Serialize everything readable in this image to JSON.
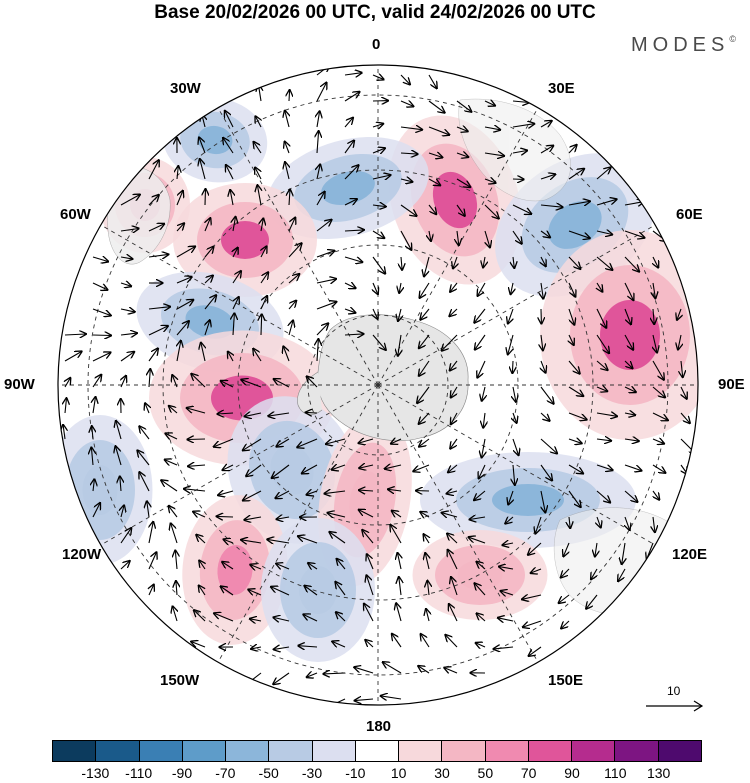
{
  "title": "Base 20/02/2026 00 UTC, valid 24/02/2026 00 UTC",
  "logo": {
    "text": "MODES",
    "mark": "©"
  },
  "map": {
    "projection": "south-polar-stereographic",
    "longitude_labels": [
      "0",
      "30E",
      "60E",
      "90E",
      "120E",
      "150E",
      "180",
      "150W",
      "120W",
      "90W",
      "60W",
      "30W"
    ],
    "anomaly_centers": [
      {
        "sign": "positive",
        "value": 75
      },
      {
        "sign": "negative",
        "value": -55
      },
      {
        "sign": "negative",
        "value": -60
      },
      {
        "sign": "positive",
        "value": 70
      },
      {
        "sign": "negative",
        "value": -55
      },
      {
        "sign": "positive",
        "value": 65
      },
      {
        "sign": "positive",
        "value": 75
      },
      {
        "sign": "negative",
        "value": -55
      },
      {
        "sign": "positive",
        "value": 80
      },
      {
        "sign": "negative",
        "value": -50
      },
      {
        "sign": "positive",
        "value": 45
      },
      {
        "sign": "negative",
        "value": -60
      },
      {
        "sign": "positive",
        "value": 65
      },
      {
        "sign": "negative",
        "value": -40
      },
      {
        "sign": "negative",
        "value": -35
      },
      {
        "sign": "positive",
        "value": 40
      }
    ]
  },
  "reference_vector": {
    "label": "10"
  },
  "colorbar": {
    "ticks": [
      "-130",
      "-110",
      "-90",
      "-70",
      "-50",
      "-30",
      "-10",
      "10",
      "30",
      "50",
      "70",
      "90",
      "110",
      "130"
    ],
    "colors": [
      "#0c3b5e",
      "#1a5a8a",
      "#3a7fb4",
      "#5e9cc9",
      "#8cb6da",
      "#b8cbe4",
      "#dcdff0",
      "#ffffff",
      "#f7d9dc",
      "#f4b7c4",
      "#f08ab0",
      "#e0559a",
      "#b52c8e",
      "#7d1582",
      "#4e0a6e"
    ]
  }
}
